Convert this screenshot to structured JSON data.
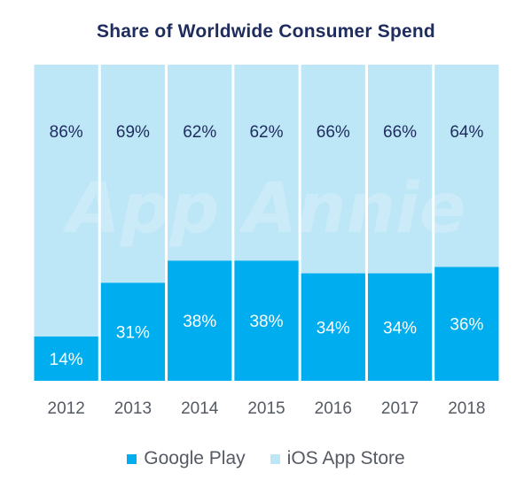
{
  "chart_data": {
    "type": "bar",
    "stacked": true,
    "title": "Share of Worldwide Consumer Spend",
    "categories": [
      "2012",
      "2013",
      "2014",
      "2015",
      "2016",
      "2017",
      "2018"
    ],
    "series": [
      {
        "name": "Google Play",
        "values": [
          14,
          31,
          38,
          38,
          34,
          34,
          36
        ],
        "labels": [
          "14%",
          "31%",
          "38%",
          "38%",
          "34%",
          "34%",
          "36%"
        ],
        "color": "#00aeef"
      },
      {
        "name": "iOS App Store",
        "values": [
          86,
          69,
          62,
          62,
          66,
          66,
          64
        ],
        "labels": [
          "86%",
          "69%",
          "62%",
          "62%",
          "66%",
          "66%",
          "64%"
        ],
        "color": "#bde6f7"
      }
    ],
    "ylim": [
      0,
      100
    ],
    "xlabel": "",
    "ylabel": "",
    "legend": "bottom",
    "label_colors": {
      "on_dark": "#ffffff",
      "on_light": "#1e2c5e",
      "axis": "#555a63"
    },
    "watermark": "App Annie"
  }
}
